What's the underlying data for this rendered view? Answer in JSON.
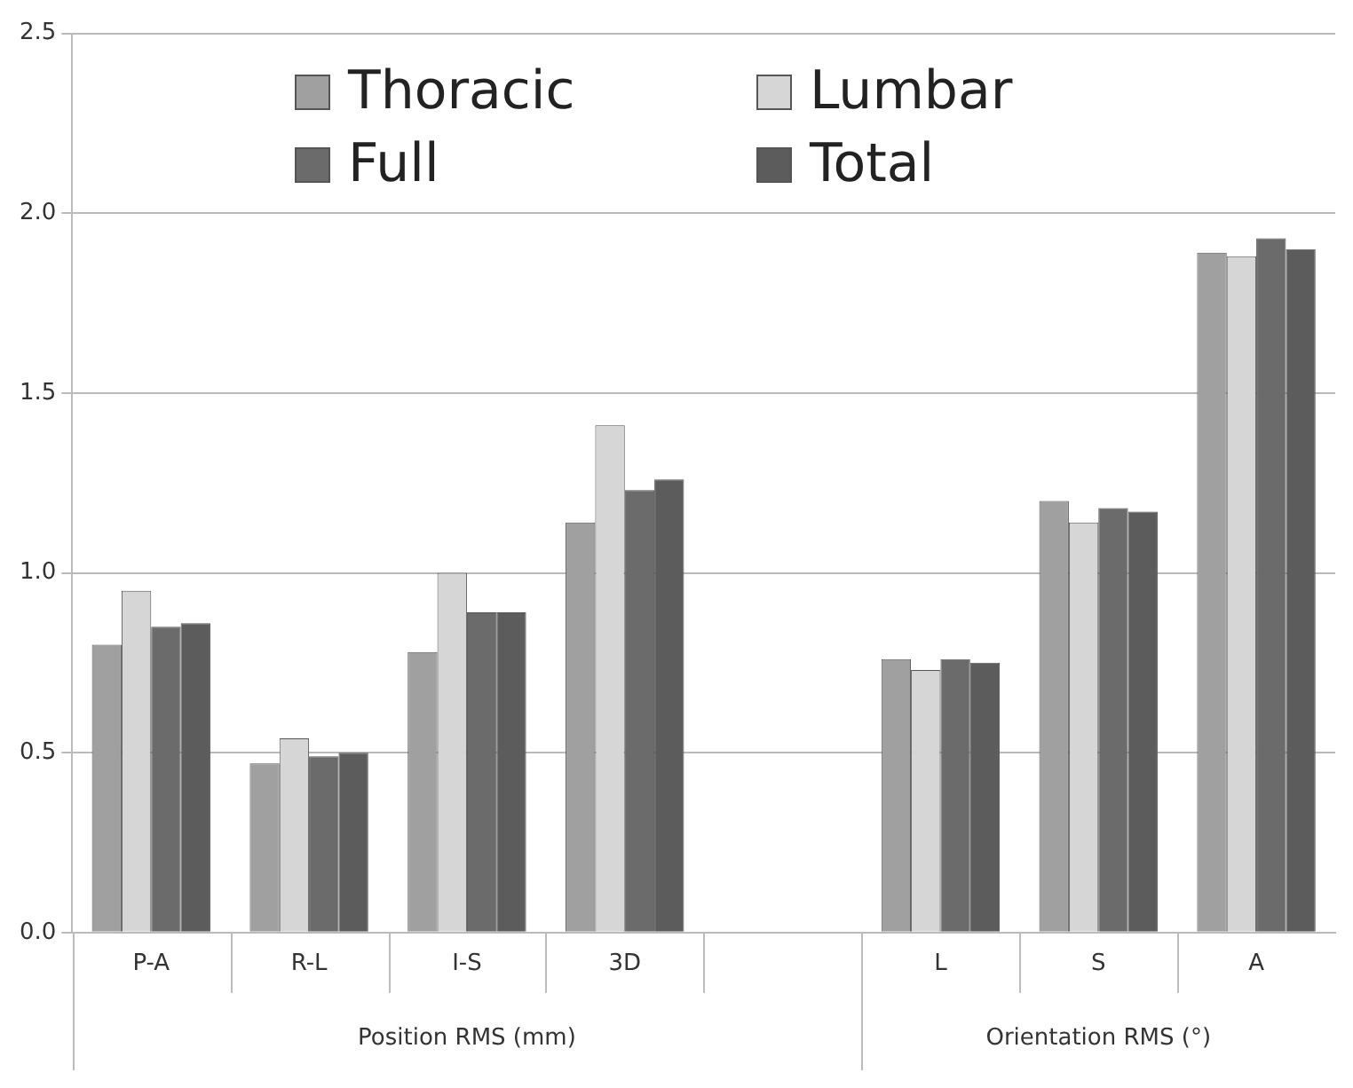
{
  "chart_data": {
    "type": "bar",
    "categories": [
      "P-A",
      "R-L",
      "I-S",
      "3D",
      null,
      "L",
      "S",
      "A"
    ],
    "series": [
      {
        "name": "Thoracic",
        "color": "#a0a0a0",
        "values": [
          0.8,
          0.47,
          0.78,
          1.14,
          null,
          0.76,
          1.2,
          1.89
        ]
      },
      {
        "name": "Lumbar",
        "color": "#d6d6d6",
        "values": [
          0.95,
          0.54,
          1.0,
          1.41,
          null,
          0.73,
          1.14,
          1.88
        ]
      },
      {
        "name": "Full",
        "color": "#6b6b6b",
        "values": [
          0.85,
          0.49,
          0.89,
          1.23,
          null,
          0.76,
          1.18,
          1.93
        ]
      },
      {
        "name": "Total",
        "color": "#5c5c5c",
        "values": [
          0.86,
          0.5,
          0.89,
          1.26,
          null,
          0.75,
          1.17,
          1.9
        ]
      }
    ],
    "annotations": [
      "Position RMS (mm)",
      "Orientation RMS (°)"
    ],
    "ylim": [
      0,
      2.5
    ],
    "yticks": [
      {
        "value": 0,
        "label": "0.0"
      },
      {
        "value": 0.5,
        "label": "0.5"
      },
      {
        "value": 1,
        "label": "1.0"
      },
      {
        "value": 1.5,
        "label": "1.5"
      },
      {
        "value": 2,
        "label": "2.0"
      },
      {
        "value": 2.5,
        "label": "2.5"
      }
    ],
    "grid": "y",
    "legend": "top left"
  }
}
